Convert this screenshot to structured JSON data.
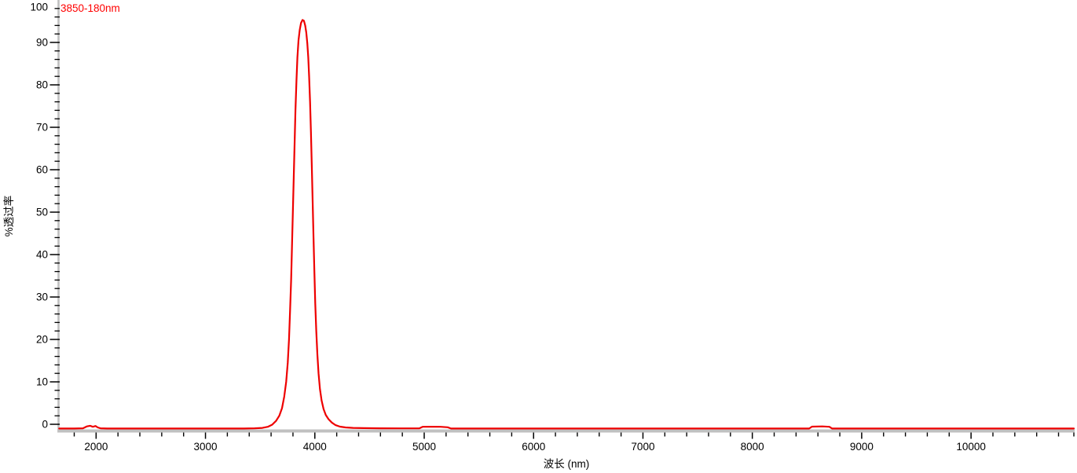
{
  "chart": {
    "legend_label": "3850-180nm",
    "y_axis_title": "%透过率",
    "x_axis_title": "波长 (nm)",
    "colors": {
      "series": "#ee0000",
      "legend_text": "#ff0000",
      "axis_line": "#c0c0c0",
      "tick": "#000000",
      "tick_label": "#000000",
      "background": "#ffffff"
    }
  },
  "chart_data": {
    "type": "line",
    "title": "",
    "xlabel": "波长 (nm)",
    "ylabel": "%透过率",
    "xlim": [
      1660,
      10940
    ],
    "ylim": [
      0,
      100
    ],
    "x_major_ticks": [
      2000,
      3000,
      4000,
      5000,
      6000,
      7000,
      8000,
      9000,
      10000
    ],
    "x_minor_step": 200,
    "y_major_step": 10,
    "y_minor_step": 2,
    "grid": false,
    "legend_position": "top-left",
    "peak_reading": {
      "center_nm": 3890,
      "peak_transmittance_pct": 95.3,
      "fwhm_nm": 185
    },
    "series": [
      {
        "name": "3850-180nm",
        "points": [
          [
            1662,
            -1
          ],
          [
            1800,
            -1
          ],
          [
            1880,
            -0.95
          ],
          [
            1915,
            -0.5
          ],
          [
            1945,
            -0.35
          ],
          [
            1970,
            -0.6
          ],
          [
            1995,
            -0.4
          ],
          [
            2015,
            -0.75
          ],
          [
            2040,
            -0.95
          ],
          [
            2100,
            -1
          ],
          [
            2400,
            -1
          ],
          [
            2700,
            -1
          ],
          [
            3000,
            -1
          ],
          [
            3200,
            -1
          ],
          [
            3350,
            -1
          ],
          [
            3450,
            -0.95
          ],
          [
            3520,
            -0.85
          ],
          [
            3570,
            -0.6
          ],
          [
            3610,
            -0.1
          ],
          [
            3645,
            0.8
          ],
          [
            3675,
            2
          ],
          [
            3700,
            3.8
          ],
          [
            3720,
            6.5
          ],
          [
            3738,
            10
          ],
          [
            3752,
            14.5
          ],
          [
            3764,
            20
          ],
          [
            3774,
            27
          ],
          [
            3783,
            34
          ],
          [
            3791,
            42
          ],
          [
            3799,
            50
          ],
          [
            3807,
            58
          ],
          [
            3815,
            66
          ],
          [
            3823,
            74
          ],
          [
            3832,
            81
          ],
          [
            3841,
            86.5
          ],
          [
            3851,
            90.5
          ],
          [
            3862,
            93
          ],
          [
            3874,
            94.6
          ],
          [
            3887,
            95.3
          ],
          [
            3900,
            95.1
          ],
          [
            3912,
            94
          ],
          [
            3922,
            92.3
          ],
          [
            3931,
            89.8
          ],
          [
            3940,
            86.5
          ],
          [
            3948,
            82
          ],
          [
            3956,
            76
          ],
          [
            3964,
            69
          ],
          [
            3972,
            61
          ],
          [
            3980,
            52.5
          ],
          [
            3988,
            44
          ],
          [
            3996,
            36
          ],
          [
            4004,
            28.5
          ],
          [
            4013,
            22
          ],
          [
            4023,
            16.5
          ],
          [
            4034,
            12
          ],
          [
            4047,
            8.3
          ],
          [
            4062,
            5.6
          ],
          [
            4080,
            3.6
          ],
          [
            4100,
            2.2
          ],
          [
            4125,
            1.2
          ],
          [
            4155,
            0.4
          ],
          [
            4190,
            -0.2
          ],
          [
            4230,
            -0.55
          ],
          [
            4280,
            -0.75
          ],
          [
            4350,
            -0.85
          ],
          [
            4450,
            -0.9
          ],
          [
            4600,
            -0.95
          ],
          [
            4800,
            -0.97
          ],
          [
            4955,
            -0.97
          ],
          [
            4985,
            -0.6
          ],
          [
            5060,
            -0.58
          ],
          [
            5150,
            -0.6
          ],
          [
            5215,
            -0.7
          ],
          [
            5245,
            -1
          ],
          [
            5500,
            -1
          ],
          [
            6000,
            -1
          ],
          [
            6500,
            -1
          ],
          [
            7000,
            -1
          ],
          [
            7500,
            -1
          ],
          [
            8000,
            -1
          ],
          [
            8300,
            -1
          ],
          [
            8520,
            -1
          ],
          [
            8545,
            -0.55
          ],
          [
            8640,
            -0.5
          ],
          [
            8705,
            -0.6
          ],
          [
            8730,
            -1
          ],
          [
            9000,
            -1
          ],
          [
            9400,
            -1
          ],
          [
            9800,
            -1
          ],
          [
            10200,
            -1
          ],
          [
            10600,
            -1
          ],
          [
            10940,
            -1
          ]
        ]
      }
    ]
  }
}
